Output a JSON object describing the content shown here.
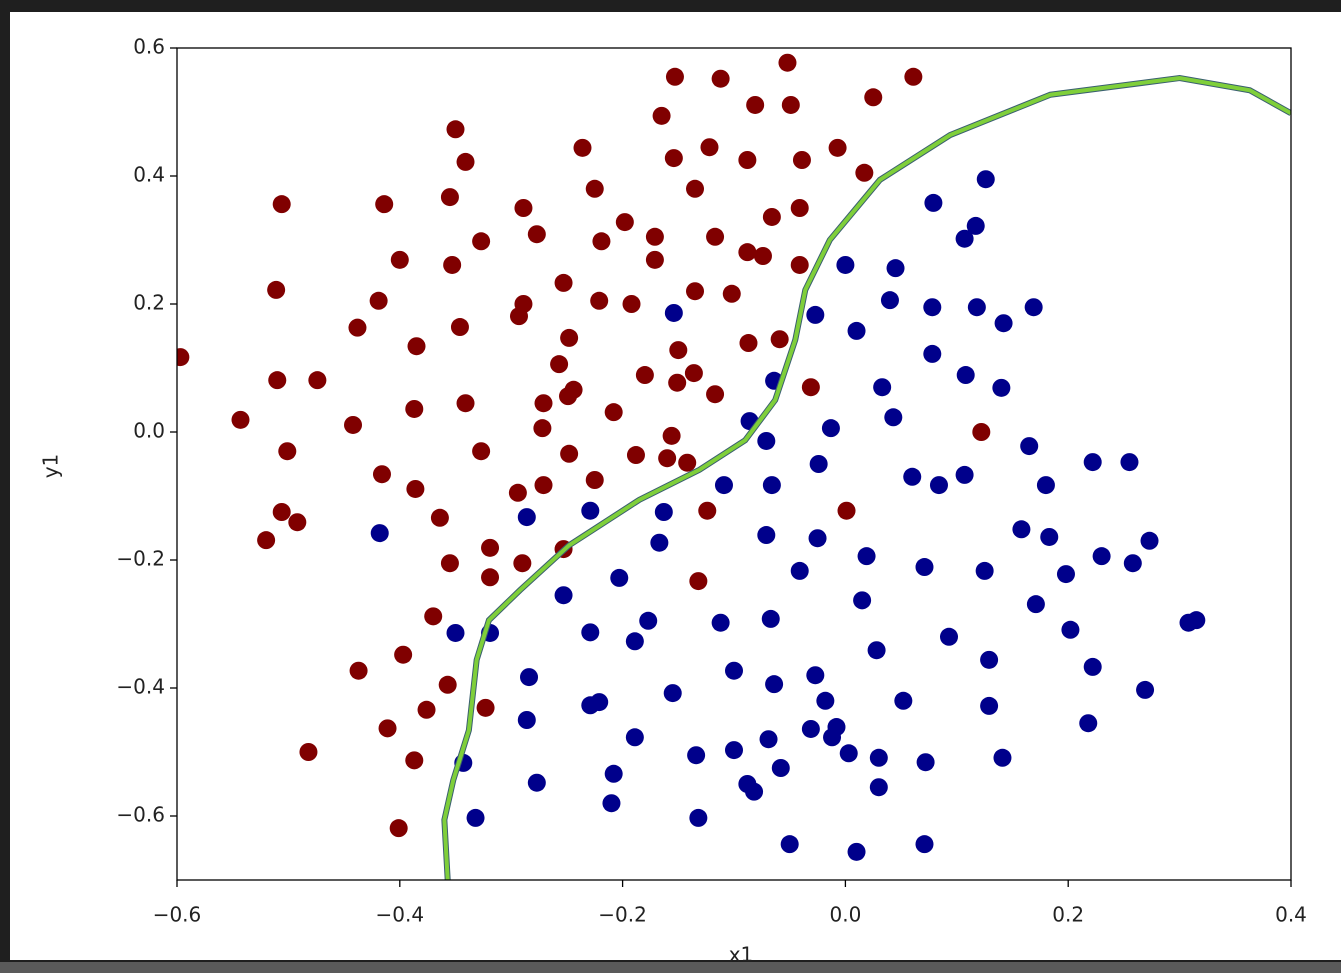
{
  "chart_data": {
    "type": "scatter",
    "xlabel": "x1",
    "ylabel": "y1",
    "xlim": [
      -0.6,
      0.4
    ],
    "ylim": [
      -0.7,
      0.6
    ],
    "xticks": [
      {
        "value": -0.6,
        "label": "−0.6"
      },
      {
        "value": -0.4,
        "label": "−0.4"
      },
      {
        "value": -0.2,
        "label": "−0.2"
      },
      {
        "value": 0,
        "label": "0.0"
      },
      0.2,
      0.4
    ],
    "yticks": [
      {
        "value": -0.6,
        "label": "−0.6"
      },
      {
        "value": -0.4,
        "label": "−0.4"
      },
      {
        "value": -0.2,
        "label": "−0.2"
      },
      {
        "value": 0,
        "label": "0.0"
      },
      0.2,
      0.4,
      0.6
    ],
    "series": [
      {
        "type": "scatter",
        "color": "#800000",
        "x": [
          -0.597,
          -0.153,
          -0.112,
          -0.052,
          0.061,
          -0.081,
          -0.049,
          0.025,
          -0.165,
          -0.35,
          -0.341,
          -0.236,
          -0.122,
          -0.154,
          -0.088,
          -0.039,
          -0.007,
          0.017,
          -0.506,
          -0.414,
          -0.355,
          -0.225,
          -0.135,
          -0.289,
          -0.041,
          -0.066,
          -0.198,
          -0.327,
          -0.277,
          -0.219,
          -0.171,
          -0.117,
          -0.088,
          -0.074,
          -0.171,
          -0.4,
          -0.353,
          -0.041,
          -0.511,
          -0.419,
          -0.253,
          -0.221,
          -0.192,
          -0.135,
          -0.102,
          -0.289,
          -0.293,
          -0.438,
          -0.346,
          -0.248,
          -0.385,
          -0.15,
          -0.087,
          -0.059,
          -0.257,
          -0.18,
          -0.136,
          -0.151,
          -0.51,
          -0.474,
          -0.244,
          -0.249,
          -0.117,
          -0.031,
          -0.271,
          -0.341,
          -0.387,
          -0.208,
          -0.543,
          -0.442,
          -0.272,
          0.122,
          -0.156,
          -0.501,
          -0.327,
          -0.248,
          -0.188,
          -0.16,
          -0.142,
          -0.416,
          -0.225,
          -0.271,
          -0.386,
          -0.294,
          0.001,
          -0.124,
          -0.506,
          -0.492,
          -0.364,
          -0.52,
          -0.319,
          -0.253,
          -0.355,
          -0.29,
          -0.319,
          -0.132,
          -0.37,
          -0.437,
          -0.357,
          -0.397,
          -0.323,
          -0.376,
          -0.411,
          -0.482,
          -0.387,
          -0.401
        ],
        "values": [
          0.117,
          0.555,
          0.552,
          0.577,
          0.555,
          0.511,
          0.511,
          0.523,
          0.494,
          0.473,
          0.422,
          0.444,
          0.445,
          0.428,
          0.425,
          0.425,
          0.444,
          0.405,
          0.356,
          0.356,
          0.367,
          0.38,
          0.38,
          0.35,
          0.35,
          0.336,
          0.328,
          0.298,
          0.309,
          0.298,
          0.305,
          0.305,
          0.281,
          0.275,
          0.269,
          0.269,
          0.261,
          0.261,
          0.222,
          0.205,
          0.233,
          0.205,
          0.2,
          0.22,
          0.216,
          0.2,
          0.181,
          0.163,
          0.164,
          0.147,
          0.134,
          0.128,
          0.139,
          0.145,
          0.106,
          0.089,
          0.092,
          0.077,
          0.081,
          0.081,
          0.066,
          0.056,
          0.059,
          0.07,
          0.045,
          0.045,
          0.036,
          0.031,
          0.019,
          0.011,
          0.006,
          0,
          -0.006,
          -0.03,
          -0.03,
          -0.034,
          -0.036,
          -0.041,
          -0.048,
          -0.066,
          -0.075,
          -0.083,
          -0.089,
          -0.095,
          -0.123,
          -0.123,
          -0.125,
          -0.141,
          -0.134,
          -0.169,
          -0.181,
          -0.183,
          -0.205,
          -0.205,
          -0.227,
          -0.233,
          -0.288,
          -0.373,
          -0.395,
          -0.348,
          -0.431,
          -0.434,
          -0.463,
          -0.5,
          -0.513,
          -0.619
        ]
      },
      {
        "type": "scatter",
        "color": "#00008b",
        "x": [
          0.126,
          0.079,
          0.117,
          0.107,
          0,
          0.045,
          0.04,
          0.078,
          0.118,
          0.169,
          0.142,
          -0.154,
          -0.027,
          0.01,
          0.078,
          0.108,
          0.033,
          0.14,
          -0.064,
          0.043,
          -0.086,
          -0.013,
          -0.071,
          0.165,
          -0.024,
          0.222,
          0.255,
          0.107,
          0.06,
          0.084,
          0.18,
          -0.066,
          -0.109,
          -0.286,
          -0.229,
          -0.163,
          -0.418,
          -0.167,
          -0.071,
          -0.025,
          0.158,
          0.183,
          0.273,
          0.23,
          0.258,
          0.019,
          0.071,
          0.125,
          -0.041,
          0.198,
          -0.203,
          -0.253,
          0.015,
          0.171,
          -0.177,
          -0.112,
          -0.067,
          0.308,
          0.315,
          -0.35,
          -0.319,
          -0.229,
          -0.189,
          0.093,
          0.202,
          0.028,
          0.129,
          0.222,
          -0.1,
          -0.027,
          -0.284,
          -0.064,
          -0.155,
          0.269,
          0.052,
          -0.018,
          -0.221,
          -0.229,
          0.129,
          -0.286,
          0.218,
          -0.031,
          -0.008,
          -0.012,
          -0.189,
          -0.069,
          -0.134,
          -0.1,
          0.003,
          0.03,
          0.072,
          0.141,
          -0.343,
          -0.058,
          -0.208,
          -0.277,
          -0.088,
          -0.082,
          0.03,
          -0.21,
          -0.332,
          -0.132,
          -0.05,
          0.071,
          0.01
        ],
        "values": [
          0.395,
          0.358,
          0.322,
          0.302,
          0.261,
          0.256,
          0.206,
          0.195,
          0.195,
          0.195,
          0.17,
          0.186,
          0.183,
          0.158,
          0.122,
          0.089,
          0.07,
          0.069,
          0.08,
          0.023,
          0.017,
          0.006,
          -0.014,
          -0.022,
          -0.05,
          -0.047,
          -0.047,
          -0.067,
          -0.07,
          -0.083,
          -0.083,
          -0.083,
          -0.083,
          -0.133,
          -0.123,
          -0.125,
          -0.158,
          -0.173,
          -0.161,
          -0.166,
          -0.152,
          -0.164,
          -0.17,
          -0.194,
          -0.205,
          -0.194,
          -0.211,
          -0.217,
          -0.217,
          -0.222,
          -0.228,
          -0.255,
          -0.263,
          -0.269,
          -0.295,
          -0.298,
          -0.292,
          -0.298,
          -0.294,
          -0.314,
          -0.314,
          -0.313,
          -0.327,
          -0.32,
          -0.309,
          -0.341,
          -0.356,
          -0.367,
          -0.373,
          -0.38,
          -0.383,
          -0.394,
          -0.408,
          -0.403,
          -0.42,
          -0.42,
          -0.422,
          -0.427,
          -0.428,
          -0.45,
          -0.455,
          -0.464,
          -0.461,
          -0.477,
          -0.477,
          -0.48,
          -0.505,
          -0.497,
          -0.502,
          -0.509,
          -0.516,
          -0.509,
          -0.517,
          -0.525,
          -0.534,
          -0.548,
          -0.55,
          -0.562,
          -0.555,
          -0.58,
          -0.603,
          -0.603,
          -0.644,
          -0.644,
          -0.656
        ]
      },
      {
        "type": "line",
        "color": "#7fcf3a",
        "x": [
          -0.357,
          -0.36,
          -0.352,
          -0.338,
          -0.331,
          -0.32,
          -0.292,
          -0.248,
          -0.185,
          -0.131,
          -0.09,
          -0.063,
          -0.045,
          -0.036,
          -0.014,
          0.031,
          0.094,
          0.184,
          0.3,
          0.363,
          0.4
        ],
        "values": [
          -0.7,
          -0.606,
          -0.544,
          -0.466,
          -0.356,
          -0.294,
          -0.247,
          -0.177,
          -0.106,
          -0.059,
          -0.013,
          0.05,
          0.144,
          0.222,
          0.3,
          0.394,
          0.464,
          0.527,
          0.553,
          0.534,
          0.498
        ]
      }
    ]
  }
}
